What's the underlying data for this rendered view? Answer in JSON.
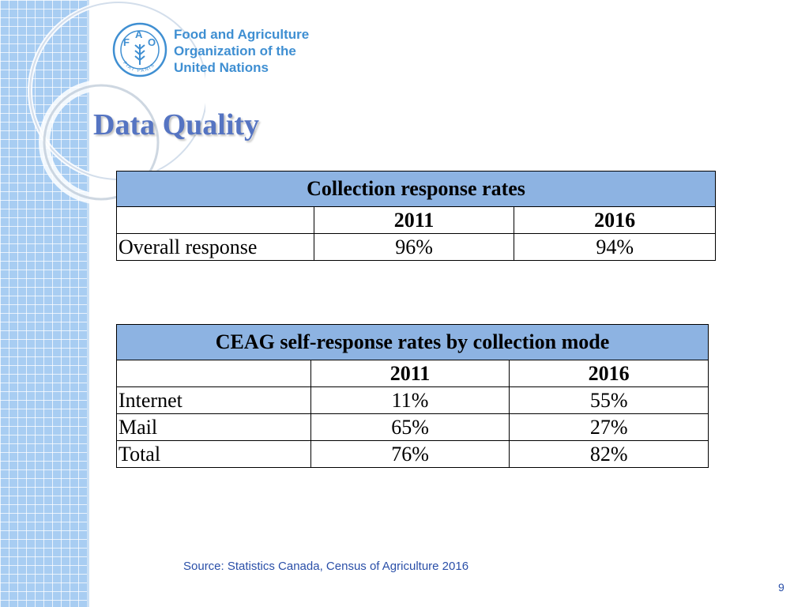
{
  "header": {
    "org_name_lines": [
      "Food and Agriculture",
      "Organization of the",
      "United Nations"
    ],
    "logo_letters": [
      "F",
      "A",
      "O"
    ],
    "logo_motto": "FIAT PANIS"
  },
  "slide": {
    "title": "Data Quality",
    "source": "Source: Statistics Canada, Census of Agriculture 2016",
    "page_number": "9"
  },
  "table_collection": {
    "title": "Collection response rates",
    "years": [
      "2011",
      "2016"
    ],
    "rows": [
      {
        "label": "Overall response",
        "values": [
          "96%",
          "94%"
        ]
      }
    ]
  },
  "table_self_response": {
    "title": "CEAG self-response rates by collection mode",
    "years": [
      "2011",
      "2016"
    ],
    "rows": [
      {
        "label": "Internet",
        "values": [
          "11%",
          "55%"
        ]
      },
      {
        "label": "Mail",
        "values": [
          "65%",
          "27%"
        ]
      },
      {
        "label": "Total",
        "values": [
          "76%",
          "82%"
        ]
      }
    ]
  },
  "colors": {
    "table_header_bg": "#8db3e2",
    "title_color": "#5574c2",
    "logo_blue": "#3f8fd2",
    "side_panel": "#a8cdf2"
  }
}
